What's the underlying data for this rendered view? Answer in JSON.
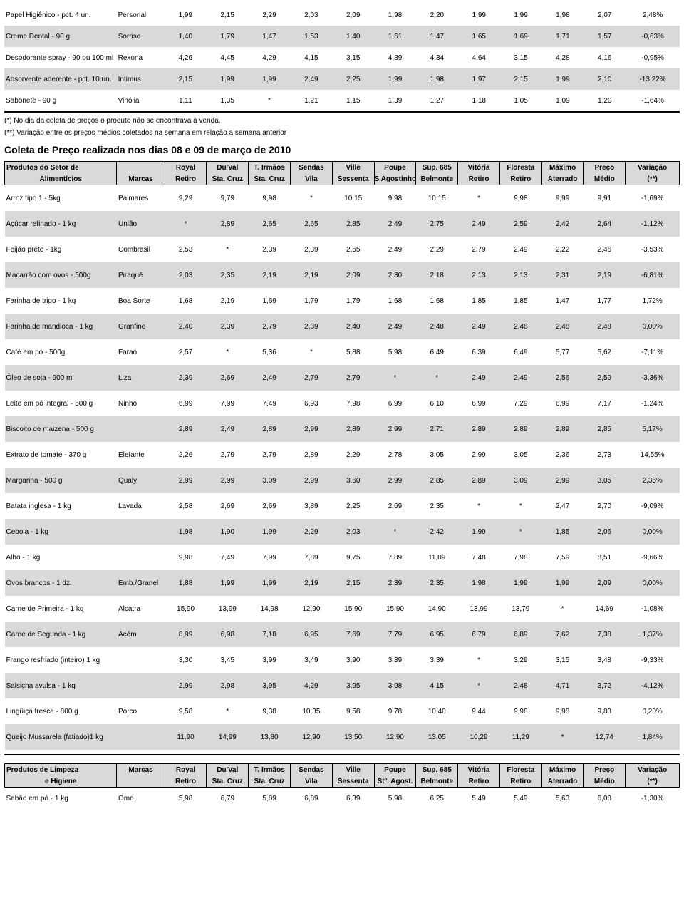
{
  "top_table": {
    "rows": [
      {
        "shade": false,
        "product": "Papel Higiênico - pct. 4 un.",
        "brand": "Personal",
        "vals": [
          "1,99",
          "2,15",
          "2,29",
          "2,03",
          "2,09",
          "1,98",
          "2,20",
          "1,99",
          "1,99",
          "1,98",
          "2,07",
          "2,48%"
        ]
      },
      {
        "shade": true,
        "product": "Creme Dental - 90 g",
        "brand": "Sorriso",
        "vals": [
          "1,40",
          "1,79",
          "1,47",
          "1,53",
          "1,40",
          "1,61",
          "1,47",
          "1,65",
          "1,69",
          "1,71",
          "1,57",
          "-0,63%"
        ]
      },
      {
        "shade": false,
        "product": "Desodorante spray - 90 ou 100 ml",
        "brand": "Rexona",
        "vals": [
          "4,26",
          "4,45",
          "4,29",
          "4,15",
          "3,15",
          "4,89",
          "4,34",
          "4,64",
          "3,15",
          "4,28",
          "4,16",
          "-0,95%"
        ]
      },
      {
        "shade": true,
        "product": "Absorvente aderente - pct. 10 un.",
        "brand": "Intimus",
        "vals": [
          "2,15",
          "1,99",
          "1,99",
          "2,49",
          "2,25",
          "1,99",
          "1,98",
          "1,97",
          "2,15",
          "1,99",
          "2,10",
          "-13,22%"
        ]
      },
      {
        "shade": false,
        "product": "Sabonete - 90 g",
        "brand": "Vinólia",
        "vals": [
          "1,11",
          "1,35",
          "*",
          "1,21",
          "1,15",
          "1,39",
          "1,27",
          "1,18",
          "1,05",
          "1,09",
          "1,20",
          "-1,64%"
        ]
      }
    ]
  },
  "notes": {
    "n1": "(*) No dia da coleta de preços o produto não se encontrava à venda.",
    "n2": "(**) Variação entre os preços médios coletados na semana em relação a semana anterior"
  },
  "title": "Coleta de Preço realizada nos dias 08 e 09 de março de 2010",
  "products_header": {
    "row1": [
      "Produtos do Setor de",
      "",
      "Royal",
      "Du'Val",
      "T. Irmãos",
      "Sendas",
      "Ville",
      "Poupe",
      "Sup. 685",
      "Vitória",
      "Floresta",
      "Máximo",
      "Preço",
      "Variação"
    ],
    "row2": [
      "Alimentícios",
      "Marcas",
      "Retiro",
      "Sta. Cruz",
      "Sta. Cruz",
      "Vila",
      "Sessenta",
      "S Agostinho",
      "Belmonte",
      "Retiro",
      "Retiro",
      "Aterrado",
      "Médio",
      "(**)"
    ]
  },
  "products": [
    {
      "shade": false,
      "product": "Arroz tipo 1 - 5kg",
      "brand": "Palmares",
      "vals": [
        "9,29",
        "9,79",
        "9,98",
        "*",
        "10,15",
        "9,98",
        "10,15",
        "*",
        "9,98",
        "9,99",
        "9,91",
        "-1,69%"
      ]
    },
    {
      "shade": true,
      "product": "Açúcar refinado - 1 kg",
      "brand": "União",
      "vals": [
        "*",
        "2,89",
        "2,65",
        "2,65",
        "2,85",
        "2,49",
        "2,75",
        "2,49",
        "2,59",
        "2,42",
        "2,64",
        "-1,12%"
      ]
    },
    {
      "shade": false,
      "product": "Feijão preto - 1kg",
      "brand": "Combrasil",
      "vals": [
        "2,53",
        "*",
        "2,39",
        "2,39",
        "2,55",
        "2,49",
        "2,29",
        "2,79",
        "2,49",
        "2,22",
        "2,46",
        "-3,53%"
      ]
    },
    {
      "shade": true,
      "product": "Macarrão com ovos - 500g",
      "brand": "Piraquê",
      "vals": [
        "2,03",
        "2,35",
        "2,19",
        "2,19",
        "2,09",
        "2,30",
        "2,18",
        "2,13",
        "2,13",
        "2,31",
        "2,19",
        "-6,81%"
      ]
    },
    {
      "shade": false,
      "product": "Farinha de trigo - 1 kg",
      "brand": "Boa Sorte",
      "vals": [
        "1,68",
        "2,19",
        "1,69",
        "1,79",
        "1,79",
        "1,68",
        "1,68",
        "1,85",
        "1,85",
        "1,47",
        "1,77",
        "1,72%"
      ]
    },
    {
      "shade": true,
      "product": "Farinha de mandioca - 1 kg",
      "brand": "Granfino",
      "vals": [
        "2,40",
        "2,39",
        "2,79",
        "2,39",
        "2,40",
        "2,49",
        "2,48",
        "2,49",
        "2,48",
        "2,48",
        "2,48",
        "0,00%"
      ]
    },
    {
      "shade": false,
      "product": "Café em pó - 500g",
      "brand": "Faraó",
      "vals": [
        "2,57",
        "*",
        "5,36",
        "*",
        "5,88",
        "5,98",
        "6,49",
        "6,39",
        "6,49",
        "5,77",
        "5,62",
        "-7,11%"
      ]
    },
    {
      "shade": true,
      "product": "Óleo de soja - 900 ml",
      "brand": "Liza",
      "vals": [
        "2,39",
        "2,69",
        "2,49",
        "2,79",
        "2,79",
        "*",
        "*",
        "2,49",
        "2,49",
        "2,56",
        "2,59",
        "-3,36%"
      ]
    },
    {
      "shade": false,
      "product": "Leite em pó integral - 500 g",
      "brand": "Ninho",
      "vals": [
        "6,99",
        "7,99",
        "7,49",
        "6,93",
        "7,98",
        "6,99",
        "6,10",
        "6,99",
        "7,29",
        "6,99",
        "7,17",
        "-1,24%"
      ]
    },
    {
      "shade": true,
      "product": "Biscoito de maizena - 500 g",
      "brand": "",
      "vals": [
        "2,89",
        "2,49",
        "2,89",
        "2,99",
        "2,89",
        "2,99",
        "2,71",
        "2,89",
        "2,89",
        "2,89",
        "2,85",
        "5,17%"
      ]
    },
    {
      "shade": false,
      "product": "Extrato de tomate - 370 g",
      "brand": "Elefante",
      "vals": [
        "2,26",
        "2,79",
        "2,79",
        "2,89",
        "2,29",
        "2,78",
        "3,05",
        "2,99",
        "3,05",
        "2,36",
        "2,73",
        "14,55%"
      ]
    },
    {
      "shade": true,
      "product": "Margarina - 500 g",
      "brand": "Qualy",
      "vals": [
        "2,99",
        "2,99",
        "3,09",
        "2,99",
        "3,60",
        "2,99",
        "2,85",
        "2,89",
        "3,09",
        "2,99",
        "3,05",
        "2,35%"
      ]
    },
    {
      "shade": false,
      "product": "Batata inglesa - 1 kg",
      "brand": "Lavada",
      "vals": [
        "2,58",
        "2,69",
        "2,69",
        "3,89",
        "2,25",
        "2,69",
        "2,35",
        "*",
        "*",
        "2,47",
        "2,70",
        "-9,09%"
      ]
    },
    {
      "shade": true,
      "product": "Cebola - 1 kg",
      "brand": "",
      "vals": [
        "1,98",
        "1,90",
        "1,99",
        "2,29",
        "2,03",
        "*",
        "2,42",
        "1,99",
        "*",
        "1,85",
        "2,06",
        "0,00%"
      ]
    },
    {
      "shade": false,
      "product": "Alho - 1 kg",
      "brand": "",
      "vals": [
        "9,98",
        "7,49",
        "7,99",
        "7,89",
        "9,75",
        "7,89",
        "11,09",
        "7,48",
        "7,98",
        "7,59",
        "8,51",
        "-9,66%"
      ]
    },
    {
      "shade": true,
      "product": "Ovos brancos - 1 dz.",
      "brand": "Emb./Granel",
      "vals": [
        "1,88",
        "1,99",
        "1,99",
        "2,19",
        "2,15",
        "2,39",
        "2,35",
        "1,98",
        "1,99",
        "1,99",
        "2,09",
        "0,00%"
      ]
    },
    {
      "shade": false,
      "product": "Carne de Primeira - 1 kg",
      "brand": "Alcatra",
      "vals": [
        "15,90",
        "13,99",
        "14,98",
        "12,90",
        "15,90",
        "15,90",
        "14,90",
        "13,99",
        "13,79",
        "*",
        "14,69",
        "-1,08%"
      ]
    },
    {
      "shade": true,
      "product": "Carne de Segunda - 1 kg",
      "brand": "Acém",
      "vals": [
        "8,99",
        "6,98",
        "7,18",
        "6,95",
        "7,69",
        "7,79",
        "6,95",
        "6,79",
        "6,89",
        "7,62",
        "7,38",
        "1,37%"
      ]
    },
    {
      "shade": false,
      "product": "Frango resfriado (inteiro) 1 kg",
      "brand": "",
      "vals": [
        "3,30",
        "3,45",
        "3,99",
        "3,49",
        "3,90",
        "3,39",
        "3,39",
        "*",
        "3,29",
        "3,15",
        "3,48",
        "-9,33%"
      ]
    },
    {
      "shade": true,
      "product": "Salsicha avulsa - 1 kg",
      "brand": "",
      "vals": [
        "2,99",
        "2,98",
        "3,95",
        "4,29",
        "3,95",
        "3,98",
        "4,15",
        "*",
        "2,48",
        "4,71",
        "3,72",
        "-4,12%"
      ]
    },
    {
      "shade": false,
      "product": "Lingüiça fresca - 800 g",
      "brand": "Porco",
      "vals": [
        "9,58",
        "*",
        "9,38",
        "10,35",
        "9,58",
        "9,78",
        "10,40",
        "9,44",
        "9,98",
        "9,98",
        "9,83",
        "0,20%"
      ]
    },
    {
      "shade": true,
      "product": "Queijo Mussarela (fatiado)1 kg",
      "brand": "",
      "vals": [
        "11,90",
        "14,99",
        "13,80",
        "12,90",
        "13,50",
        "12,90",
        "13,05",
        "10,29",
        "11,29",
        "*",
        "12,74",
        "1,84%"
      ]
    }
  ],
  "cleaning_header": {
    "row1": [
      "Produtos de Limpeza",
      "Marcas",
      "Royal",
      "Du'Val",
      "T. Irmãos",
      "Sendas",
      "Ville",
      "Poupe",
      "Sup. 685",
      "Vitória",
      "Floresta",
      "Máximo",
      "Preço",
      "Variação"
    ],
    "row2": [
      "e Higiene",
      "",
      "Retiro",
      "Sta. Cruz",
      "Sta. Cruz",
      "Vila",
      "Sessenta",
      "Stº. Agost.",
      "Belmonte",
      "Retiro",
      "Retiro",
      "Aterrado",
      "Médio",
      "(**)"
    ]
  },
  "cleaning": [
    {
      "shade": false,
      "product": "Sabão em pó - 1 kg",
      "brand": "Omo",
      "vals": [
        "5,98",
        "6,79",
        "5,89",
        "6,89",
        "6,39",
        "5,98",
        "6,25",
        "5,49",
        "5,49",
        "5,63",
        "6,08",
        "-1,30%"
      ]
    }
  ]
}
